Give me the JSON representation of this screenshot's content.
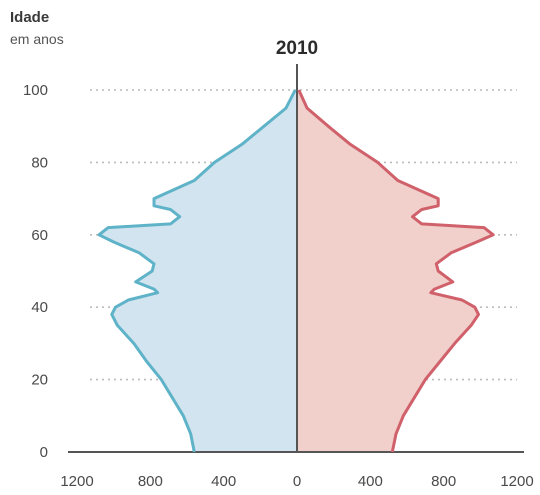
{
  "chart_data": {
    "type": "area",
    "title": "2010",
    "ylabel": "Idade",
    "ylabel_sub": "em anos",
    "xlim": [
      -1200,
      1200
    ],
    "ylim": [
      0,
      100
    ],
    "x_ticks": [
      "1200",
      "800",
      "400",
      "0",
      "400",
      "800",
      "1200"
    ],
    "y_ticks": [
      "0",
      "20",
      "40",
      "60",
      "80",
      "100"
    ],
    "grid": "dotted horizontal",
    "colors": {
      "male_line": "#5fb3c8",
      "male_fill": "#d2e4ef",
      "female_line": "#d0606a",
      "female_fill": "#f1d0cc",
      "axis": "#555555",
      "grid": "#bbbbbb"
    },
    "series": [
      {
        "side": "left",
        "ages": [
          0,
          5,
          10,
          15,
          20,
          25,
          30,
          35,
          38,
          40,
          42,
          44,
          45,
          47,
          50,
          52,
          55,
          58,
          60,
          62,
          63,
          65,
          67,
          68,
          70,
          75,
          80,
          85,
          90,
          95,
          100
        ],
        "values": [
          560,
          580,
          620,
          680,
          740,
          820,
          890,
          980,
          1010,
          990,
          920,
          760,
          780,
          880,
          790,
          780,
          860,
          1000,
          1080,
          1030,
          690,
          640,
          690,
          780,
          780,
          560,
          450,
          300,
          180,
          60,
          10
        ]
      },
      {
        "side": "right",
        "ages": [
          0,
          5,
          10,
          15,
          20,
          25,
          30,
          35,
          38,
          40,
          42,
          44,
          45,
          47,
          50,
          52,
          55,
          58,
          60,
          62,
          63,
          65,
          67,
          68,
          70,
          75,
          80,
          85,
          90,
          95,
          100
        ],
        "values": [
          520,
          540,
          580,
          640,
          700,
          780,
          860,
          950,
          990,
          970,
          900,
          730,
          750,
          850,
          770,
          760,
          840,
          980,
          1070,
          1020,
          680,
          630,
          680,
          770,
          770,
          550,
          440,
          290,
          170,
          55,
          10
        ]
      }
    ]
  }
}
